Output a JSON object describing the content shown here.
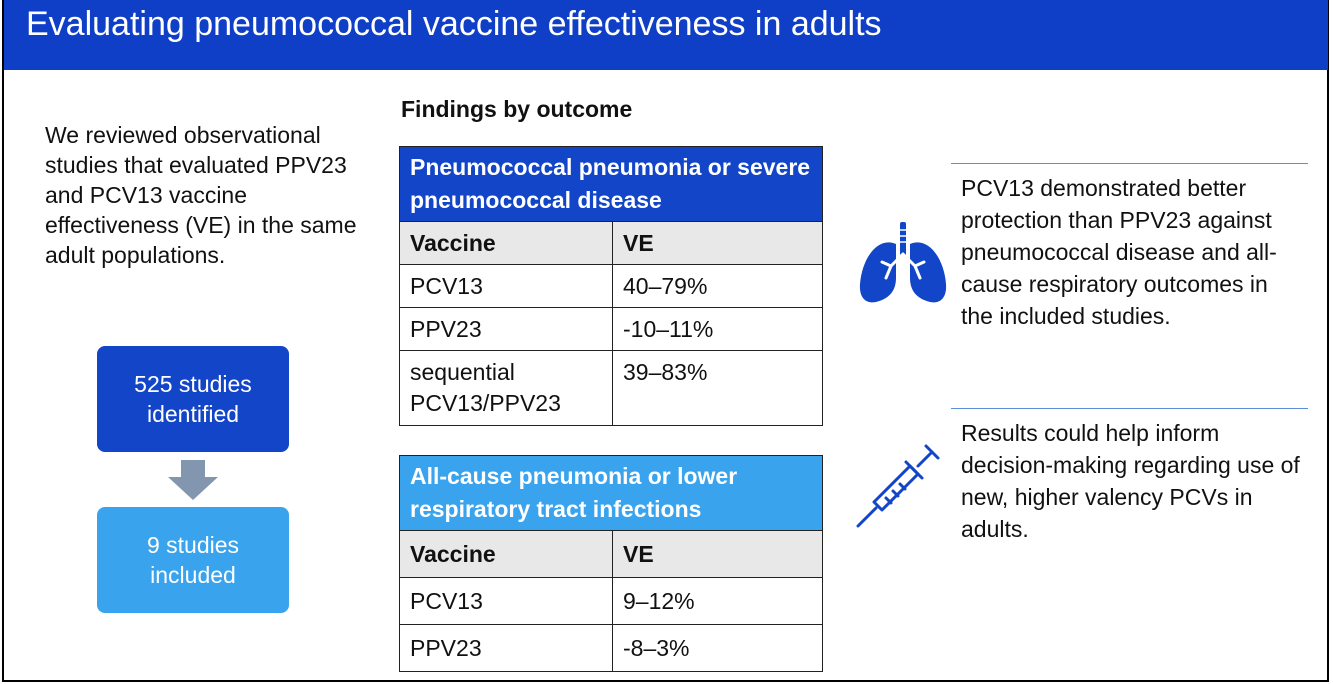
{
  "header": {
    "title": "Evaluating pneumococcal vaccine effectiveness in adults"
  },
  "intro": {
    "text": "We reviewed observational studies that evaluated PPV23 and PCV13 vaccine effectiveness (VE) in the same adult populations."
  },
  "flow": {
    "identified": "525 studies identified",
    "included": "9 studies included"
  },
  "findings": {
    "title": "Findings by outcome",
    "tables": [
      {
        "heading": "Pneumococcal pneumonia or severe pneumococcal disease",
        "columns": [
          "Vaccine",
          "VE"
        ],
        "rows": [
          [
            "PCV13",
            "40–79%"
          ],
          [
            "PPV23",
            "-10–11%"
          ],
          [
            "sequential PCV13/PPV23",
            "39–83%"
          ]
        ]
      },
      {
        "heading": "All-cause pneumonia or lower respiratory tract infections",
        "columns": [
          "Vaccine",
          "VE"
        ],
        "rows": [
          [
            "PCV13",
            "9–12%"
          ],
          [
            "PPV23",
            "-8–3%"
          ]
        ]
      }
    ]
  },
  "conclusions": [
    {
      "icon": "lungs-icon",
      "text": "PCV13 demonstrated better protection than PPV23 against pneumococcal disease and all-cause respiratory outcomes in the included studies."
    },
    {
      "icon": "syringe-icon",
      "text": "Results could help inform decision-making regarding use of new, higher valency PCVs in adults."
    }
  ],
  "colors": {
    "title_bar": "#0f3ec7",
    "primary_blue": "#1245c8",
    "light_blue": "#3aa3ee",
    "arrow_gray": "#8296b0"
  }
}
